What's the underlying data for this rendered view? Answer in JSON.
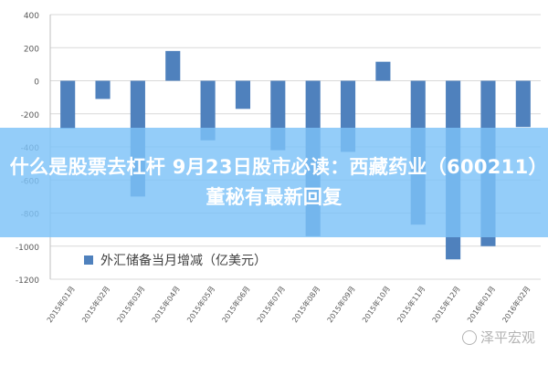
{
  "overlay_title": "什么是股票去杠杆 9月23日股市必读：西藏药业（600211）董秘有最新回复",
  "watermark": "泽平宏观",
  "colors": {
    "bar": "#4f81bd",
    "grid": "#d9d9d9",
    "axis": "#595959",
    "overlay": "#7dc2f8"
  },
  "chart_data": {
    "type": "bar",
    "categories": [
      "2015年01月",
      "2015年02月",
      "2015年03月",
      "2015年04月",
      "2015年05月",
      "2015年06月",
      "2015年07月",
      "2015年08月",
      "2015年09月",
      "2015年10月",
      "2015年11月",
      "2015年12月",
      "2016年01月",
      "2016年02月"
    ],
    "series": [
      {
        "name": "外汇储备当月增减（亿美元）",
        "values": [
          -290,
          -110,
          -700,
          180,
          -360,
          -170,
          -420,
          -940,
          -430,
          115,
          -870,
          -1080,
          -1000,
          -280
        ]
      }
    ],
    "ylim": [
      -1200,
      400
    ],
    "yticks": [
      400,
      200,
      0,
      -200,
      -400,
      -600,
      -800,
      -1000,
      -1200
    ],
    "legend_position": "bottom-left inside",
    "grid": true
  }
}
